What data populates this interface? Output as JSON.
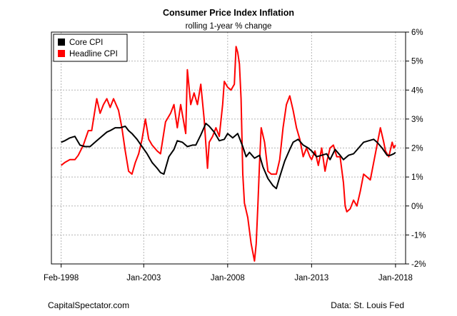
{
  "chart_data": {
    "type": "line",
    "title": "Consumer Price Index Inflation",
    "subtitle": "rolling 1-year % change",
    "xlabel": "",
    "ylabel": "",
    "x_ticks": [
      {
        "label": "Feb-1998",
        "t": 1998.08
      },
      {
        "label": "Jan-2003",
        "t": 2003.0
      },
      {
        "label": "Jan-2008",
        "t": 2008.0
      },
      {
        "label": "Jan-2013",
        "t": 2013.0
      },
      {
        "label": "Jan-2018",
        "t": 2018.0
      }
    ],
    "xlim": [
      1997.5,
      2018.6
    ],
    "ylim": [
      -2,
      6
    ],
    "y_ticks": [
      {
        "label": "-2%",
        "v": -2
      },
      {
        "label": "-1%",
        "v": -1
      },
      {
        "label": "0%",
        "v": 0
      },
      {
        "label": "1%",
        "v": 1
      },
      {
        "label": "2%",
        "v": 2
      },
      {
        "label": "3%",
        "v": 3
      },
      {
        "label": "4%",
        "v": 4
      },
      {
        "label": "5%",
        "v": 5
      },
      {
        "label": "6%",
        "v": 6
      }
    ],
    "y_axis_side": "right",
    "grid": true,
    "legend_position": "top-left",
    "series": [
      {
        "name": "Core CPI",
        "color": "#000000",
        "points": [
          [
            1998.08,
            2.2
          ],
          [
            1998.3,
            2.25
          ],
          [
            1998.6,
            2.35
          ],
          [
            1998.9,
            2.4
          ],
          [
            1999.2,
            2.1
          ],
          [
            1999.5,
            2.05
          ],
          [
            1999.8,
            2.05
          ],
          [
            2000.2,
            2.25
          ],
          [
            2000.5,
            2.4
          ],
          [
            2000.8,
            2.55
          ],
          [
            2001.0,
            2.6
          ],
          [
            2001.3,
            2.7
          ],
          [
            2001.6,
            2.7
          ],
          [
            2001.9,
            2.75
          ],
          [
            2002.1,
            2.6
          ],
          [
            2002.3,
            2.5
          ],
          [
            2002.6,
            2.3
          ],
          [
            2002.9,
            2.05
          ],
          [
            2003.2,
            1.8
          ],
          [
            2003.5,
            1.5
          ],
          [
            2003.8,
            1.3
          ],
          [
            2004.0,
            1.15
          ],
          [
            2004.2,
            1.1
          ],
          [
            2004.5,
            1.7
          ],
          [
            2004.8,
            1.95
          ],
          [
            2005.0,
            2.25
          ],
          [
            2005.3,
            2.2
          ],
          [
            2005.6,
            2.05
          ],
          [
            2005.9,
            2.1
          ],
          [
            2006.1,
            2.1
          ],
          [
            2006.4,
            2.45
          ],
          [
            2006.7,
            2.85
          ],
          [
            2006.9,
            2.75
          ],
          [
            2007.2,
            2.55
          ],
          [
            2007.5,
            2.25
          ],
          [
            2007.8,
            2.3
          ],
          [
            2008.0,
            2.5
          ],
          [
            2008.3,
            2.35
          ],
          [
            2008.6,
            2.5
          ],
          [
            2008.9,
            2.05
          ],
          [
            2009.1,
            1.7
          ],
          [
            2009.3,
            1.85
          ],
          [
            2009.6,
            1.65
          ],
          [
            2009.9,
            1.75
          ],
          [
            2010.1,
            1.35
          ],
          [
            2010.4,
            0.95
          ],
          [
            2010.7,
            0.7
          ],
          [
            2010.9,
            0.6
          ],
          [
            2011.1,
            1.0
          ],
          [
            2011.4,
            1.55
          ],
          [
            2011.7,
            1.95
          ],
          [
            2011.9,
            2.2
          ],
          [
            2012.2,
            2.3
          ],
          [
            2012.5,
            2.1
          ],
          [
            2012.8,
            2.0
          ],
          [
            2013.0,
            1.9
          ],
          [
            2013.3,
            1.7
          ],
          [
            2013.6,
            1.75
          ],
          [
            2013.9,
            1.8
          ],
          [
            2014.1,
            1.6
          ],
          [
            2014.4,
            1.95
          ],
          [
            2014.7,
            1.75
          ],
          [
            2014.9,
            1.6
          ],
          [
            2015.2,
            1.75
          ],
          [
            2015.5,
            1.8
          ],
          [
            2015.8,
            2.0
          ],
          [
            2016.1,
            2.2
          ],
          [
            2016.4,
            2.25
          ],
          [
            2016.7,
            2.3
          ],
          [
            2016.9,
            2.2
          ],
          [
            2017.2,
            2.0
          ],
          [
            2017.5,
            1.75
          ],
          [
            2017.7,
            1.75
          ],
          [
            2017.9,
            1.8
          ],
          [
            2018.0,
            1.85
          ]
        ]
      },
      {
        "name": "Headline CPI",
        "color": "#ff0000",
        "points": [
          [
            1998.08,
            1.4
          ],
          [
            1998.3,
            1.5
          ],
          [
            1998.6,
            1.6
          ],
          [
            1998.9,
            1.6
          ],
          [
            1999.1,
            1.75
          ],
          [
            1999.4,
            2.1
          ],
          [
            1999.7,
            2.6
          ],
          [
            1999.9,
            2.6
          ],
          [
            2000.2,
            3.7
          ],
          [
            2000.4,
            3.2
          ],
          [
            2000.6,
            3.5
          ],
          [
            2000.8,
            3.7
          ],
          [
            2001.0,
            3.4
          ],
          [
            2001.2,
            3.7
          ],
          [
            2001.5,
            3.3
          ],
          [
            2001.7,
            2.7
          ],
          [
            2001.9,
            1.9
          ],
          [
            2002.1,
            1.2
          ],
          [
            2002.3,
            1.1
          ],
          [
            2002.5,
            1.5
          ],
          [
            2002.7,
            1.8
          ],
          [
            2002.9,
            2.3
          ],
          [
            2003.1,
            3.0
          ],
          [
            2003.3,
            2.3
          ],
          [
            2003.5,
            2.1
          ],
          [
            2003.8,
            1.9
          ],
          [
            2004.0,
            1.8
          ],
          [
            2004.3,
            2.9
          ],
          [
            2004.6,
            3.2
          ],
          [
            2004.8,
            3.5
          ],
          [
            2005.0,
            2.7
          ],
          [
            2005.2,
            3.5
          ],
          [
            2005.5,
            2.5
          ],
          [
            2005.6,
            4.7
          ],
          [
            2005.8,
            3.5
          ],
          [
            2006.0,
            3.9
          ],
          [
            2006.2,
            3.5
          ],
          [
            2006.4,
            4.2
          ],
          [
            2006.6,
            3.0
          ],
          [
            2006.8,
            1.3
          ],
          [
            2006.9,
            2.2
          ],
          [
            2007.1,
            2.4
          ],
          [
            2007.3,
            2.7
          ],
          [
            2007.5,
            2.4
          ],
          [
            2007.7,
            3.5
          ],
          [
            2007.8,
            4.3
          ],
          [
            2008.0,
            4.1
          ],
          [
            2008.2,
            4.0
          ],
          [
            2008.4,
            4.2
          ],
          [
            2008.5,
            5.5
          ],
          [
            2008.6,
            5.3
          ],
          [
            2008.7,
            4.9
          ],
          [
            2008.8,
            3.7
          ],
          [
            2008.9,
            1.1
          ],
          [
            2009.0,
            0.1
          ],
          [
            2009.2,
            -0.4
          ],
          [
            2009.4,
            -1.3
          ],
          [
            2009.6,
            -1.9
          ],
          [
            2009.7,
            -1.3
          ],
          [
            2009.8,
            0.0
          ],
          [
            2009.9,
            1.5
          ],
          [
            2010.0,
            2.7
          ],
          [
            2010.2,
            2.2
          ],
          [
            2010.4,
            1.2
          ],
          [
            2010.6,
            1.1
          ],
          [
            2010.9,
            1.1
          ],
          [
            2011.1,
            1.6
          ],
          [
            2011.3,
            2.7
          ],
          [
            2011.5,
            3.5
          ],
          [
            2011.7,
            3.8
          ],
          [
            2011.9,
            3.3
          ],
          [
            2012.1,
            2.7
          ],
          [
            2012.3,
            2.3
          ],
          [
            2012.5,
            1.7
          ],
          [
            2012.7,
            2.0
          ],
          [
            2012.9,
            1.7
          ],
          [
            2013.0,
            1.6
          ],
          [
            2013.2,
            1.9
          ],
          [
            2013.4,
            1.4
          ],
          [
            2013.6,
            2.0
          ],
          [
            2013.8,
            1.2
          ],
          [
            2013.9,
            1.5
          ],
          [
            2014.1,
            2.0
          ],
          [
            2014.3,
            2.1
          ],
          [
            2014.5,
            1.7
          ],
          [
            2014.7,
            1.7
          ],
          [
            2014.9,
            0.8
          ],
          [
            2015.0,
            0.0
          ],
          [
            2015.1,
            -0.2
          ],
          [
            2015.3,
            -0.1
          ],
          [
            2015.5,
            0.2
          ],
          [
            2015.7,
            0.0
          ],
          [
            2015.9,
            0.5
          ],
          [
            2016.1,
            1.1
          ],
          [
            2016.3,
            1.0
          ],
          [
            2016.5,
            0.9
          ],
          [
            2016.7,
            1.5
          ],
          [
            2016.9,
            2.1
          ],
          [
            2017.1,
            2.7
          ],
          [
            2017.3,
            2.2
          ],
          [
            2017.4,
            1.9
          ],
          [
            2017.6,
            1.7
          ],
          [
            2017.8,
            2.2
          ],
          [
            2017.9,
            2.0
          ],
          [
            2018.0,
            2.1
          ]
        ]
      }
    ]
  },
  "footer": {
    "left": "CapitalSpectator.com",
    "right": "Data: St. Louis Fed"
  }
}
